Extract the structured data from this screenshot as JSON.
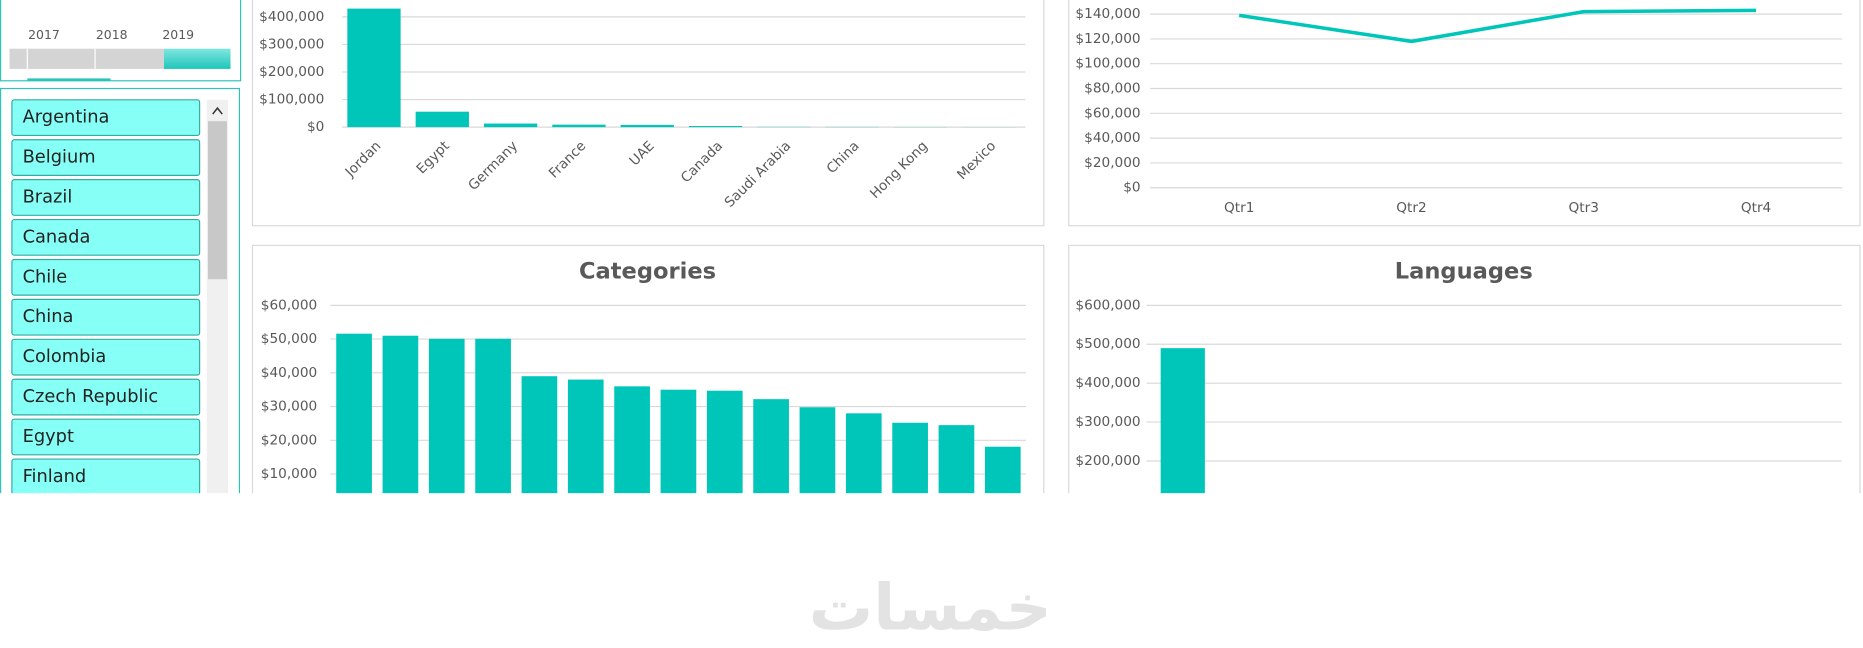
{
  "timeline": {
    "years": [
      "2017",
      "2018",
      "2019"
    ]
  },
  "slicer": {
    "items": [
      "Argentina",
      "Belgium",
      "Brazil",
      "Canada",
      "Chile",
      "China",
      "Colombia",
      "Czech Republic",
      "Egypt",
      "Finland"
    ]
  },
  "chart_data": [
    {
      "type": "bar",
      "color": "#00c5b9",
      "grid": true,
      "categories": [
        "Jordan",
        "Egypt",
        "Germany",
        "France",
        "UAE",
        "Canada",
        "Saudi Arabia",
        "China",
        "Hong Kong",
        "Mexico"
      ],
      "values": [
        430000,
        56000,
        13000,
        9000,
        8000,
        4000,
        1000,
        800,
        500,
        300
      ],
      "ylim": [
        0,
        500000
      ],
      "yticks": [
        {
          "value": 0,
          "label": "$0"
        },
        {
          "value": 100000,
          "label": "$100,000"
        },
        {
          "value": 200000,
          "label": "$200,000"
        },
        {
          "value": 300000,
          "label": "$300,000"
        },
        {
          "value": 400000,
          "label": "$400,000"
        }
      ]
    },
    {
      "type": "line",
      "color": "#00c5b9",
      "grid": true,
      "categories": [
        "Qtr1",
        "Qtr2",
        "Qtr3",
        "Qtr4"
      ],
      "values": [
        139000,
        118000,
        142000,
        143000
      ],
      "ylim": [
        0,
        160000
      ],
      "yticks": [
        {
          "value": 0,
          "label": "$0"
        },
        {
          "value": 20000,
          "label": "$20,000"
        },
        {
          "value": 40000,
          "label": "$40,000"
        },
        {
          "value": 60000,
          "label": "$60,000"
        },
        {
          "value": 80000,
          "label": "$80,000"
        },
        {
          "value": 100000,
          "label": "$100,000"
        },
        {
          "value": 120000,
          "label": "$120,000"
        },
        {
          "value": 140000,
          "label": "$140,000"
        }
      ]
    },
    {
      "type": "bar",
      "title": "Categories",
      "color": "#00c5b9",
      "grid": true,
      "values": [
        51600,
        51000,
        50100,
        50100,
        39000,
        38000,
        36000,
        35000,
        34700,
        32200,
        29800,
        28000,
        25200,
        24500,
        18100
      ],
      "ylim": [
        0,
        60000
      ],
      "yticks": [
        {
          "value": 10000,
          "label": "$10,000"
        },
        {
          "value": 20000,
          "label": "$20,000"
        },
        {
          "value": 30000,
          "label": "$30,000"
        },
        {
          "value": 40000,
          "label": "$40,000"
        },
        {
          "value": 50000,
          "label": "$50,000"
        },
        {
          "value": 60000,
          "label": "$60,000"
        }
      ]
    },
    {
      "type": "bar",
      "title": "Languages",
      "color": "#00c5b9",
      "grid": true,
      "values": [
        490000
      ],
      "ylim": [
        0,
        600000
      ],
      "yticks": [
        {
          "value": 200000,
          "label": "$200,000"
        },
        {
          "value": 300000,
          "label": "$300,000"
        },
        {
          "value": 400000,
          "label": "$400,000"
        },
        {
          "value": 500000,
          "label": "$500,000"
        },
        {
          "value": 600000,
          "label": "$600,000"
        }
      ]
    }
  ],
  "watermark": "خمسات"
}
